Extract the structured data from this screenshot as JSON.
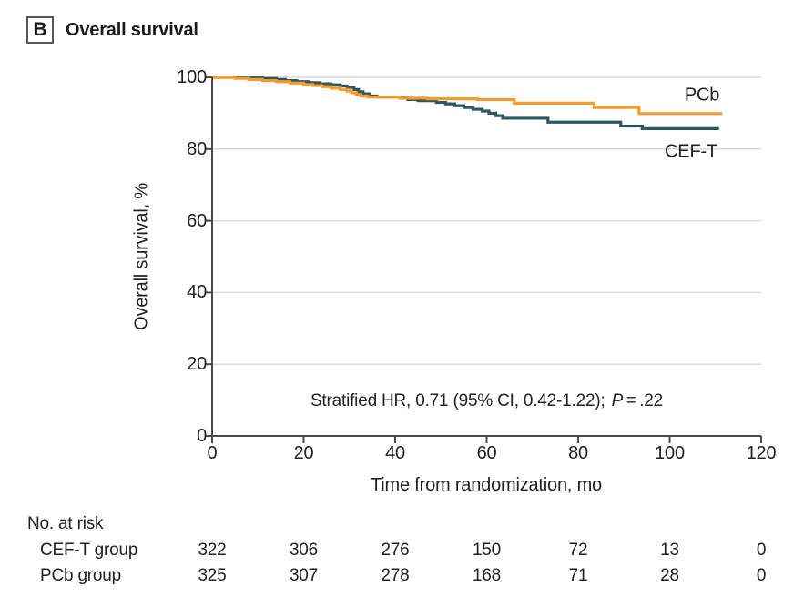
{
  "header": {
    "panel_label": "B",
    "title": "Overall survival"
  },
  "chart_data": {
    "type": "line",
    "subtype": "kaplan-meier-step",
    "title": "Overall survival",
    "xlabel": "Time from randomization, mo",
    "ylabel": "Overall survival, %",
    "xlim": [
      0,
      120
    ],
    "ylim": [
      0,
      100
    ],
    "x_ticks": [
      0,
      20,
      40,
      60,
      80,
      100,
      120
    ],
    "y_ticks": [
      0,
      20,
      40,
      60,
      80,
      100
    ],
    "grid": "horizontal",
    "legend": "inline-right",
    "colors": {
      "axis": "#4a4a4d",
      "grid": "#dbdbdb",
      "text": "#212121"
    },
    "annotation": {
      "prefix": "Stratified HR, 0.71 (95% CI, 0.42-1.22); ",
      "p_symbol": "P",
      "p_rest": " = .22"
    },
    "series": [
      {
        "name": "PCb",
        "color": "#f79a28",
        "points": [
          [
            0,
            100
          ],
          [
            5,
            99.7
          ],
          [
            8,
            99.4
          ],
          [
            11,
            99.1
          ],
          [
            14,
            98.8
          ],
          [
            17,
            98.4
          ],
          [
            20,
            98.0
          ],
          [
            22,
            97.7
          ],
          [
            24,
            97.4
          ],
          [
            26,
            97.0
          ],
          [
            28,
            96.6
          ],
          [
            29.5,
            96.2
          ],
          [
            30.5,
            95.7
          ],
          [
            31.5,
            95.2
          ],
          [
            32.5,
            94.8
          ],
          [
            34,
            94.5
          ],
          [
            41,
            94.2
          ],
          [
            47,
            94.0
          ],
          [
            58,
            93.8
          ],
          [
            66,
            92.8
          ],
          [
            83.5,
            91.6
          ],
          [
            93.3,
            89.9
          ],
          [
            111.5,
            89.9
          ]
        ]
      },
      {
        "name": "CEF-T",
        "color": "#2f5763",
        "points": [
          [
            0,
            100
          ],
          [
            11,
            99.7
          ],
          [
            14,
            99.4
          ],
          [
            16,
            99.1
          ],
          [
            18.5,
            98.8
          ],
          [
            21,
            98.5
          ],
          [
            23.5,
            98.2
          ],
          [
            26,
            97.9
          ],
          [
            28,
            97.6
          ],
          [
            29.5,
            97.2
          ],
          [
            31,
            96.6
          ],
          [
            32,
            96.0
          ],
          [
            33,
            95.4
          ],
          [
            34.5,
            94.8
          ],
          [
            36,
            94.5
          ],
          [
            42.8,
            93.8
          ],
          [
            45,
            93.5
          ],
          [
            49,
            93.0
          ],
          [
            51,
            92.6
          ],
          [
            53,
            92.1
          ],
          [
            55,
            91.6
          ],
          [
            57,
            91.1
          ],
          [
            59,
            90.6
          ],
          [
            60.5,
            90.0
          ],
          [
            62,
            89.3
          ],
          [
            63.5,
            88.6
          ],
          [
            73.4,
            87.5
          ],
          [
            89.3,
            86.4
          ],
          [
            94,
            85.7
          ],
          [
            110.8,
            85.7
          ]
        ]
      }
    ]
  },
  "risk_table": {
    "title": "No. at risk",
    "rows": [
      {
        "label": "CEF-T group",
        "values": [
          322,
          306,
          276,
          150,
          72,
          13,
          0
        ]
      },
      {
        "label": "PCb group",
        "values": [
          325,
          307,
          278,
          168,
          71,
          28,
          0
        ]
      }
    ]
  }
}
